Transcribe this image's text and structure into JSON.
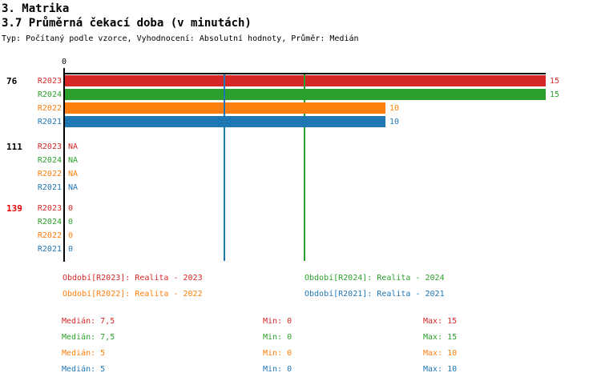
{
  "header": {
    "title": "3. Matrika",
    "subtitle": "3.7 Průměrná čekací doba (v minutách)",
    "meta": "Typ: Počítaný podle vzorce, Vyhodnocení: Absolutní hodnoty, Průměr: Medián"
  },
  "chart_data": {
    "type": "bar",
    "orientation": "horizontal",
    "xlim": [
      0,
      15
    ],
    "x_origin_tick": "0",
    "grid": "off",
    "series": [
      {
        "key": "R2023",
        "name": "Realita - 2023",
        "color": "#d62728"
      },
      {
        "key": "R2024",
        "name": "Realita - 2024",
        "color": "#2ca02c"
      },
      {
        "key": "R2022",
        "name": "Realita - 2022",
        "color": "#ff7f0e"
      },
      {
        "key": "R2021",
        "name": "Realita - 2021",
        "color": "#1f77b4"
      }
    ],
    "groups": [
      {
        "label": "76",
        "label_color": "#000000",
        "values": [
          15,
          15,
          10,
          10
        ]
      },
      {
        "label": "111",
        "label_color": "#000000",
        "values": [
          "NA",
          "NA",
          "NA",
          "NA"
        ]
      },
      {
        "label": "139",
        "label_color": "#e60000",
        "values": [
          0,
          0,
          0,
          0
        ]
      }
    ],
    "median_lines": [
      {
        "value": 7.5,
        "color": "#2ca02c"
      },
      {
        "value": 5,
        "color": "#1f77b4"
      }
    ]
  },
  "legend": {
    "items": [
      {
        "label": "Období[R2023]: Realita - 2023",
        "color": "#d62728"
      },
      {
        "label": "Období[R2024]: Realita - 2024",
        "color": "#2ca02c"
      },
      {
        "label": "Období[R2022]: Realita - 2022",
        "color": "#ff7f0e"
      },
      {
        "label": "Období[R2021]: Realita - 2021",
        "color": "#1f77b4"
      }
    ]
  },
  "stats": {
    "rows": [
      {
        "median": "Medián: 7,5",
        "min": "Min: 0",
        "max": "Max: 15",
        "color": "#d62728"
      },
      {
        "median": "Medián: 7,5",
        "min": "Min: 0",
        "max": "Max: 15",
        "color": "#2ca02c"
      },
      {
        "median": "Medián: 5",
        "min": "Min: 0",
        "max": "Max: 10",
        "color": "#ff7f0e"
      },
      {
        "median": "Medián: 5",
        "min": "Min: 0",
        "max": "Max: 10",
        "color": "#1f77b4"
      }
    ]
  }
}
